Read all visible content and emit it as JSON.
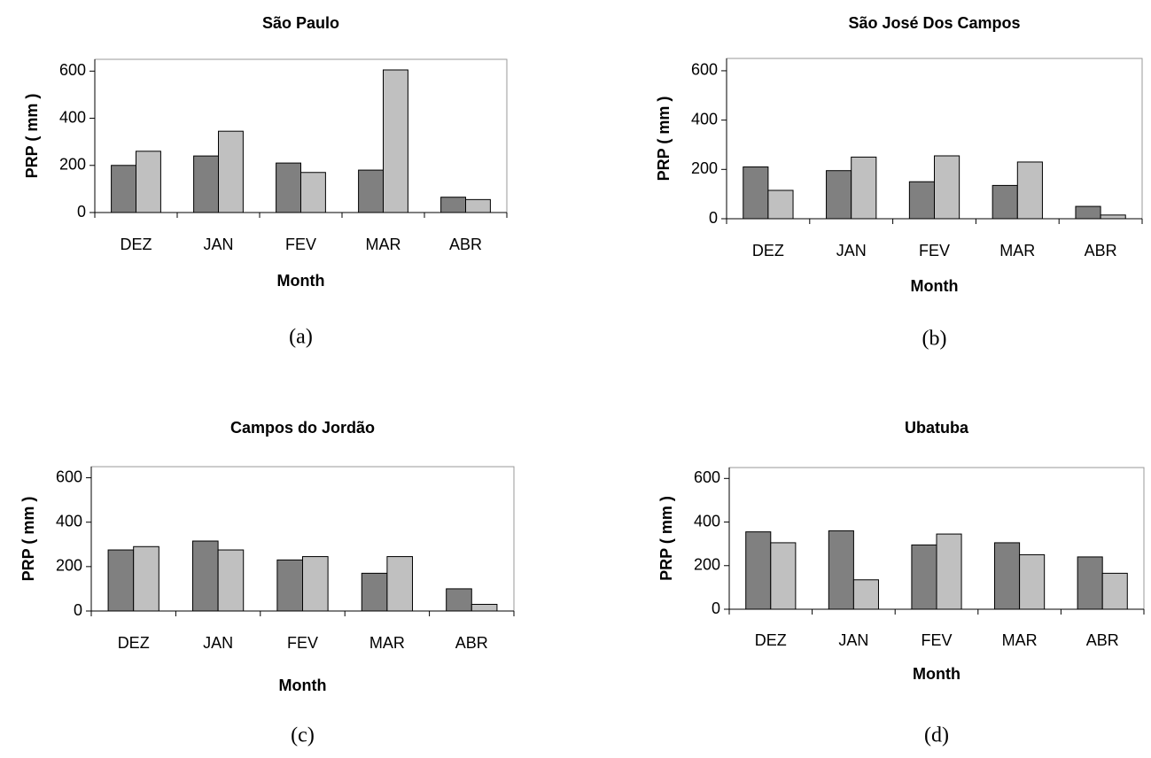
{
  "chart_data": [
    {
      "type": "bar",
      "title": "São Paulo",
      "x_label": "Month",
      "y_label": "PRP ( mm )",
      "caption": "(a)",
      "categories": [
        "DEZ",
        "JAN",
        "FEV",
        "MAR",
        "ABR"
      ],
      "series": [
        {
          "color": "#808080",
          "values": [
            200,
            240,
            210,
            180,
            65
          ]
        },
        {
          "color": "#c0c0c0",
          "values": [
            260,
            345,
            170,
            605,
            55
          ]
        }
      ],
      "ylim": [
        0,
        650
      ],
      "yticks": [
        0,
        200,
        400,
        600
      ]
    },
    {
      "type": "bar",
      "title": "São José Dos Campos",
      "x_label": "Month",
      "y_label": "PRP ( mm )",
      "caption": "(b)",
      "categories": [
        "DEZ",
        "JAN",
        "FEV",
        "MAR",
        "ABR"
      ],
      "series": [
        {
          "color": "#808080",
          "values": [
            210,
            195,
            150,
            135,
            50
          ]
        },
        {
          "color": "#c0c0c0",
          "values": [
            115,
            250,
            255,
            230,
            15
          ]
        }
      ],
      "ylim": [
        0,
        650
      ],
      "yticks": [
        0,
        200,
        400,
        600
      ]
    },
    {
      "type": "bar",
      "title": "Campos do Jordão",
      "x_label": "Month",
      "y_label": "PRP ( mm )",
      "caption": "(c)",
      "categories": [
        "DEZ",
        "JAN",
        "FEV",
        "MAR",
        "ABR"
      ],
      "series": [
        {
          "color": "#808080",
          "values": [
            275,
            315,
            230,
            170,
            100
          ]
        },
        {
          "color": "#c0c0c0",
          "values": [
            290,
            275,
            245,
            245,
            30
          ]
        }
      ],
      "ylim": [
        0,
        650
      ],
      "yticks": [
        0,
        200,
        400,
        600
      ]
    },
    {
      "type": "bar",
      "title": "Ubatuba",
      "x_label": "Month",
      "y_label": "PRP ( mm )",
      "caption": "(d)",
      "categories": [
        "DEZ",
        "JAN",
        "FEV",
        "MAR",
        "ABR"
      ],
      "series": [
        {
          "color": "#808080",
          "values": [
            355,
            360,
            295,
            305,
            240
          ]
        },
        {
          "color": "#c0c0c0",
          "values": [
            305,
            135,
            345,
            250,
            165
          ]
        }
      ],
      "ylim": [
        0,
        650
      ],
      "yticks": [
        0,
        200,
        400,
        600
      ]
    }
  ]
}
